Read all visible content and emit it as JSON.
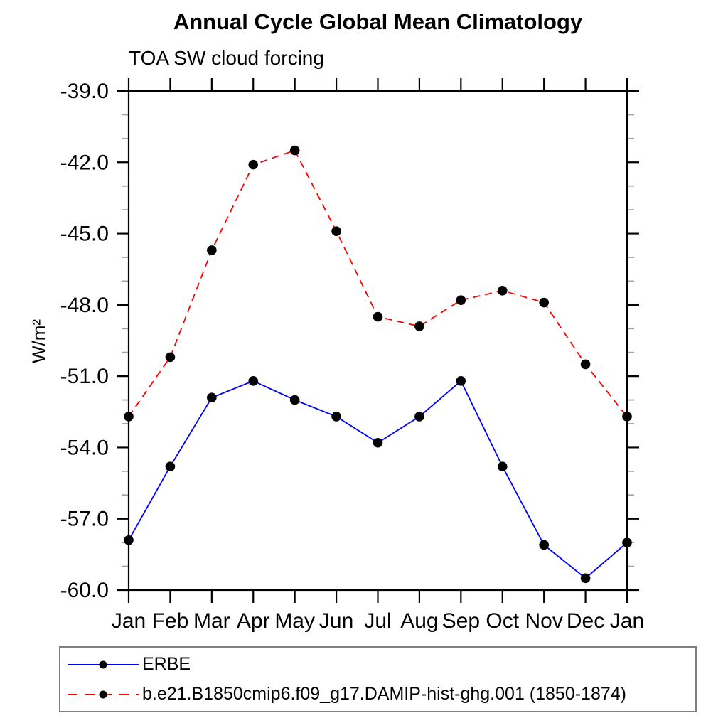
{
  "chart_data": {
    "type": "line",
    "title": "Annual Cycle Global Mean Climatology",
    "subtitle": "TOA SW cloud forcing",
    "ylabel": "W/m²",
    "categories": [
      "Jan",
      "Feb",
      "Mar",
      "Apr",
      "May",
      "Jun",
      "Jul",
      "Aug",
      "Sep",
      "Oct",
      "Nov",
      "Dec",
      "Jan"
    ],
    "ylim": [
      -60,
      -39
    ],
    "y_major_ticks": [
      -39,
      -42,
      -45,
      -48,
      -51,
      -54,
      -57,
      -60
    ],
    "y_tick_labels": [
      "-39.0",
      "-42.0",
      "-45.0",
      "-48.0",
      "-51.0",
      "-54.0",
      "-57.0",
      "-60.0"
    ],
    "y_minor_step": 1,
    "grid": false,
    "legend_position": "bottom",
    "axis_color": "#000000",
    "minor_tick_color": "#a3a3a3",
    "legend_border_color": "#808080",
    "marker": "filled-circle",
    "marker_color": "#000000",
    "series": [
      {
        "name": "ERBE",
        "color": "#0000ff",
        "line_style": "solid",
        "values": [
          -57.9,
          -54.8,
          -51.9,
          -51.2,
          -52.0,
          -52.7,
          -53.8,
          -52.7,
          -51.2,
          -54.8,
          -58.1,
          -59.5,
          -58.0
        ]
      },
      {
        "name": "b.e21.B1850cmip6.f09_g17.DAMIP-hist-ghg.001 (1850-1874)",
        "color": "#ff0000",
        "line_style": "dashed",
        "values": [
          -52.7,
          -50.2,
          -45.7,
          -42.1,
          -41.5,
          -44.9,
          -48.5,
          -48.9,
          -47.8,
          -47.4,
          -47.9,
          -50.5,
          -52.7
        ]
      }
    ]
  }
}
